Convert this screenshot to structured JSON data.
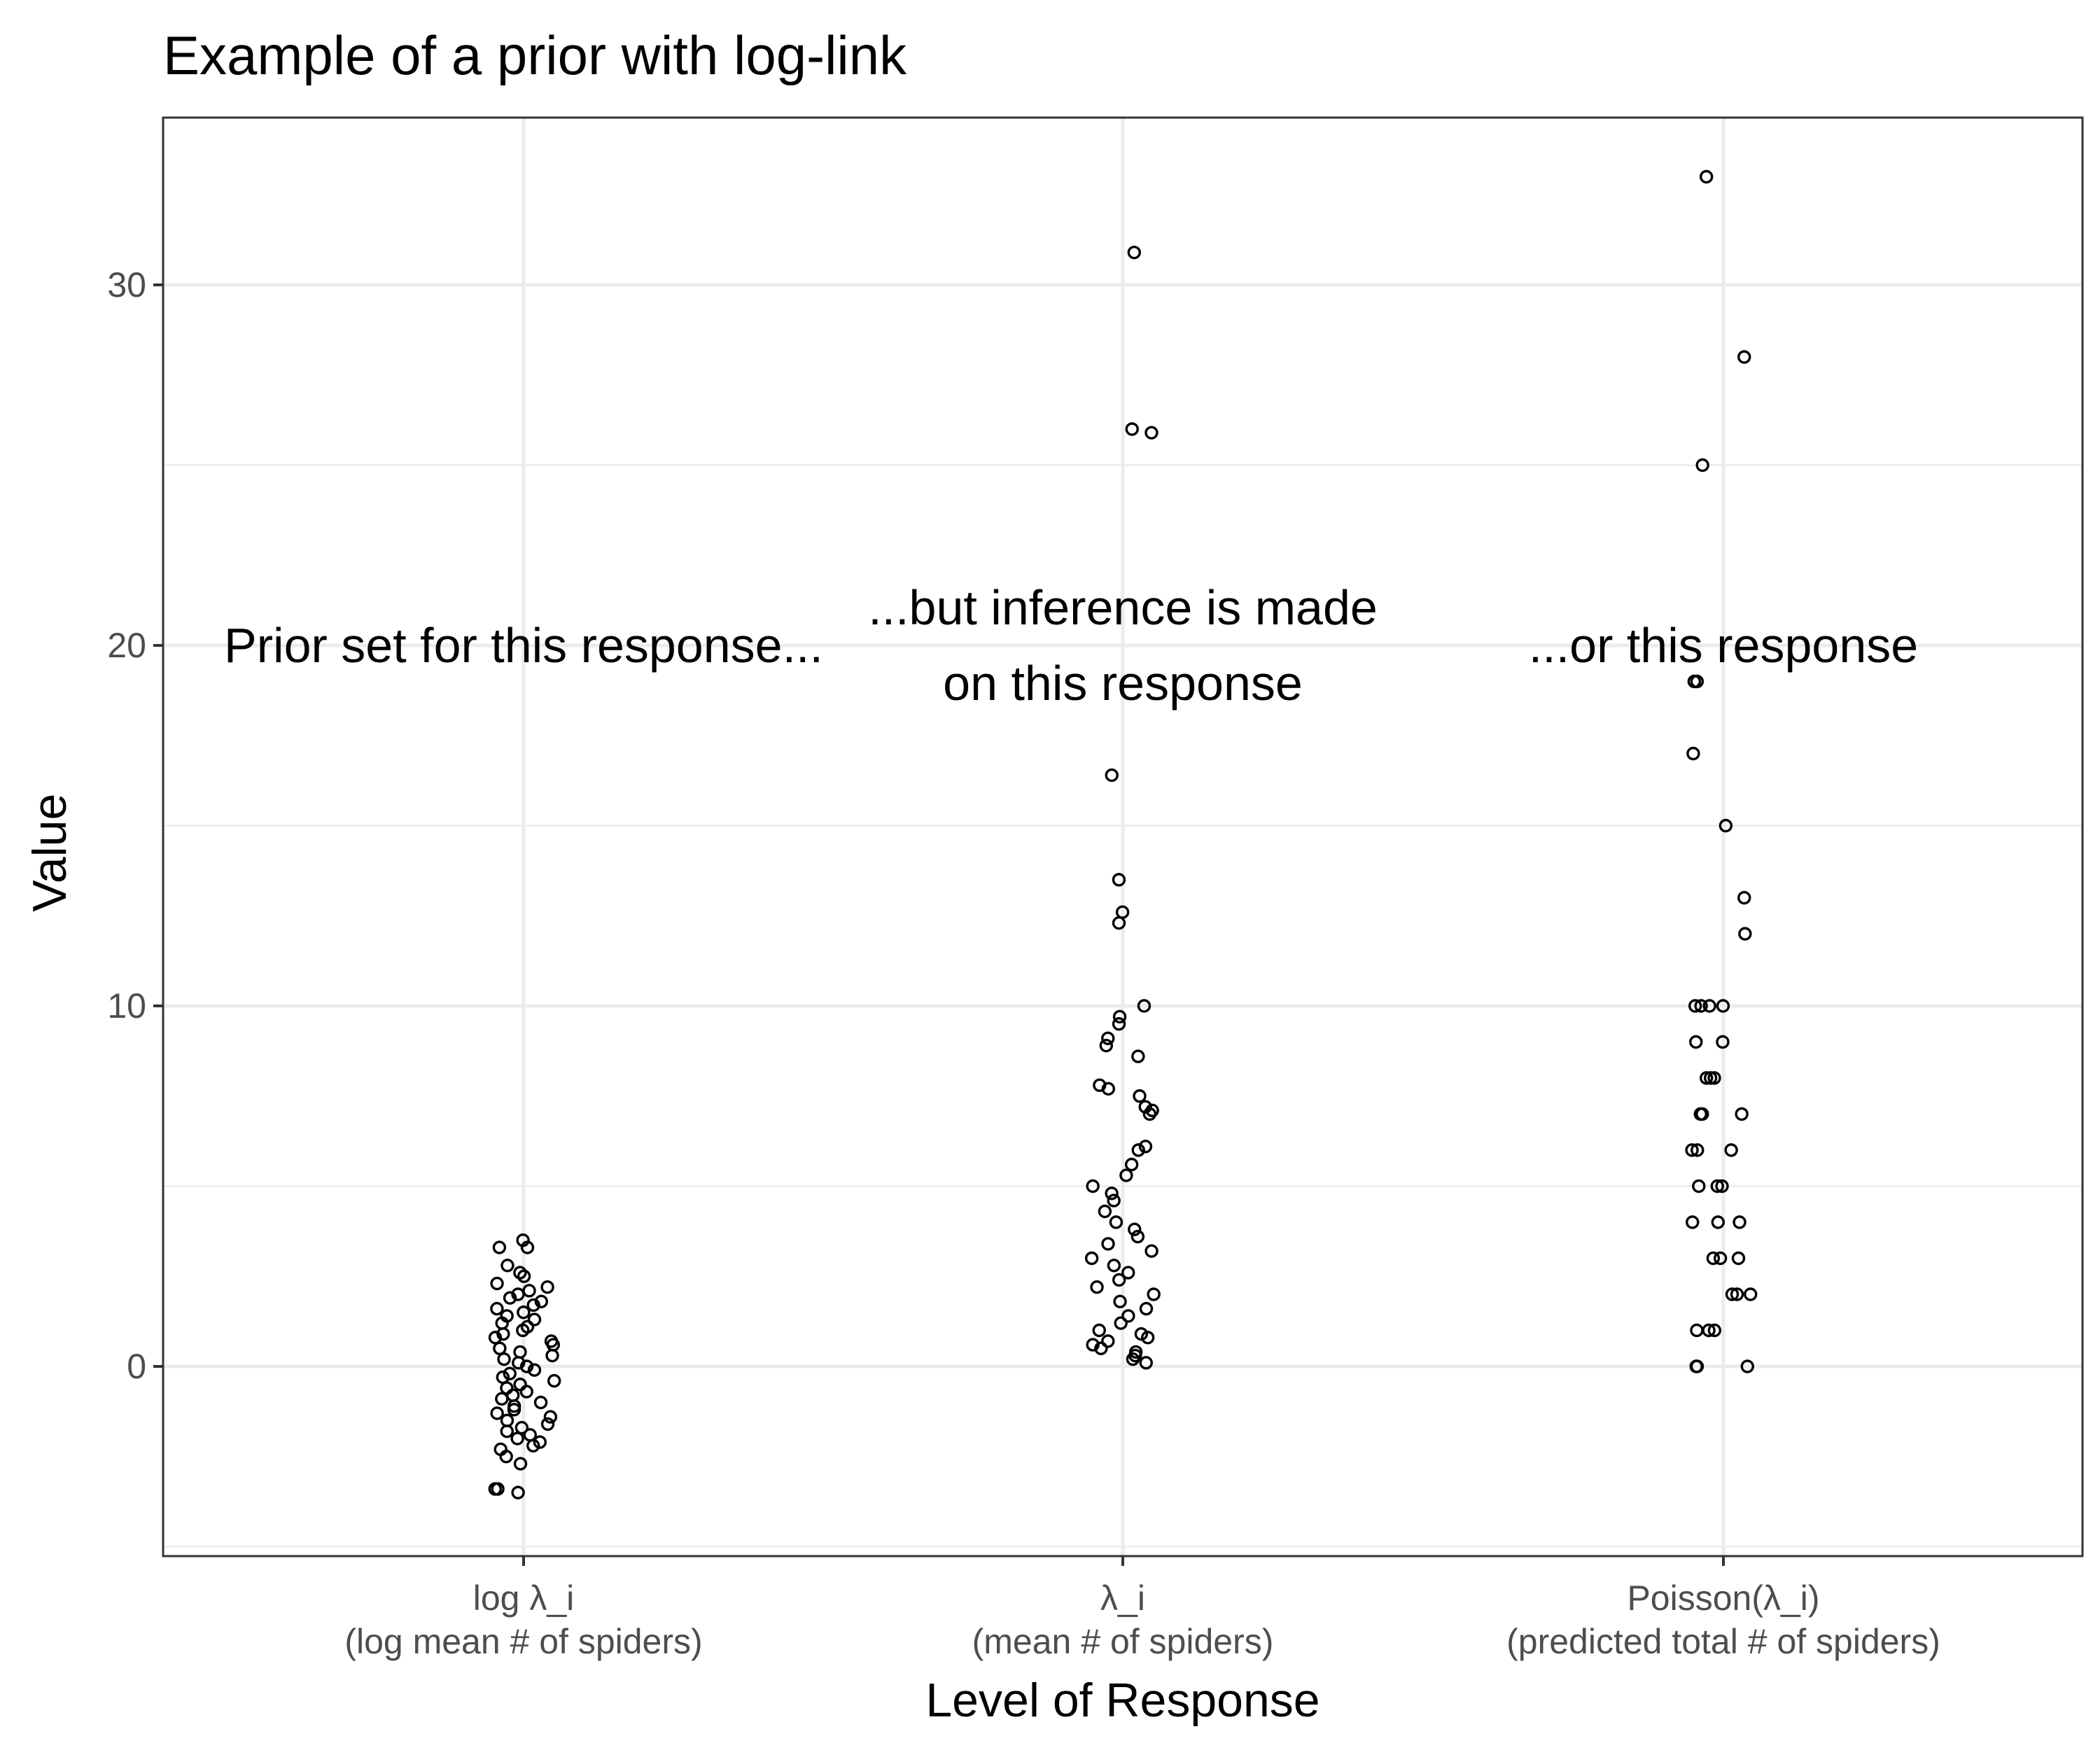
{
  "chart_data": {
    "type": "scatter",
    "title": "Example of a prior with log-link",
    "xlabel": "Level of Response",
    "ylabel": "Value",
    "ylim": [
      -5.3,
      34.6
    ],
    "y_ticks": [
      0,
      10,
      20,
      30
    ],
    "y_tick_labels": [
      "0",
      "10",
      "20",
      "30"
    ],
    "grid": true,
    "legend": "none",
    "categories": [
      {
        "line1": "log λ_i",
        "line2": "(log mean # of spiders)"
      },
      {
        "line1": "λ_i",
        "line2": "(mean # of spiders)"
      },
      {
        "line1": "Poisson(λ_i)",
        "line2": "(predicted total # of spiders)"
      }
    ],
    "annotations": [
      {
        "category_index": 0,
        "y": 20,
        "lines": [
          "Prior set for this response..."
        ]
      },
      {
        "category_index": 1,
        "y": 20,
        "lines": [
          "...but inference is made",
          "on this response"
        ]
      },
      {
        "category_index": 2,
        "y": 20,
        "lines": [
          "...or this response"
        ]
      }
    ],
    "series": [
      {
        "values": [
          3.5,
          3.3,
          3.3,
          2.8,
          2.6,
          2.5,
          2.3,
          2.2,
          2.1,
          2.0,
          1.9,
          1.8,
          1.7,
          1.6,
          1.5,
          1.4,
          1.3,
          1.2,
          1.1,
          1.0,
          0.9,
          0.8,
          0.7,
          0.6,
          0.5,
          0.4,
          0.3,
          0.2,
          0.1,
          0.0,
          -0.1,
          -0.2,
          -0.3,
          -0.4,
          -0.5,
          -0.6,
          -0.7,
          -0.8,
          -0.9,
          -1.0,
          -1.1,
          -1.2,
          -1.3,
          -1.4,
          -1.5,
          -1.6,
          -1.7,
          -1.8,
          -1.9,
          -2.0,
          -2.1,
          -2.2,
          -2.3,
          -2.5,
          -2.7,
          -3.4,
          -3.4,
          -3.5
        ]
      },
      {
        "values": [
          30.9,
          26.0,
          25.9,
          16.4,
          13.5,
          12.6,
          12.3,
          10.0,
          9.7,
          9.5,
          9.1,
          8.9,
          8.6,
          7.8,
          7.7,
          7.5,
          7.2,
          7.1,
          7.0,
          6.1,
          6.0,
          5.6,
          5.3,
          5.0,
          4.8,
          4.6,
          4.3,
          4.0,
          3.8,
          3.6,
          3.4,
          3.2,
          3.0,
          2.8,
          2.6,
          2.4,
          2.2,
          2.0,
          1.8,
          1.6,
          1.4,
          1.2,
          1.0,
          0.9,
          0.8,
          0.7,
          0.6,
          0.5,
          0.4,
          0.3,
          0.2,
          0.1
        ]
      },
      {
        "values": [
          33,
          28,
          25,
          19,
          19,
          17,
          15,
          13,
          12,
          10,
          10,
          10,
          10,
          9,
          9,
          8,
          8,
          8,
          7,
          7,
          7,
          6,
          6,
          6,
          5,
          5,
          5,
          4,
          4,
          4,
          3,
          3,
          3,
          2,
          2,
          2,
          1,
          1,
          1,
          0,
          0,
          0
        ]
      }
    ]
  }
}
